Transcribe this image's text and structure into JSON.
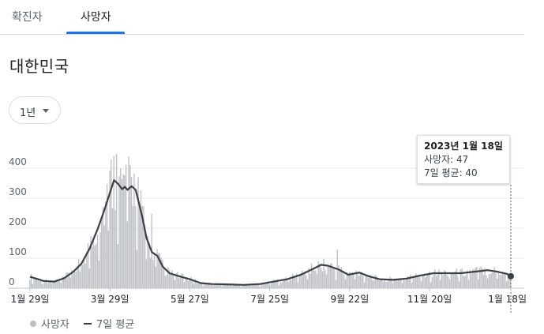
{
  "tabs": [
    {
      "label": "확진자"
    },
    {
      "label": "사망자"
    }
  ],
  "region": "대한민국",
  "range_button": {
    "label": "1년"
  },
  "tooltip": {
    "date": "2023년 1월 18일",
    "deaths": "사망자: 47",
    "avg": "7일 평균: 40"
  },
  "legend": {
    "deaths": "사망자",
    "avg": "7일 평균"
  },
  "colors": {
    "bar": "#bdc1c6",
    "line": "#3c4043",
    "accent": "#1a73e8",
    "grid": "#e8eaed"
  },
  "chart_data": {
    "type": "bar",
    "ylim": [
      0,
      450
    ],
    "y_ticks": [
      "0",
      "100",
      "200",
      "300",
      "400"
    ],
    "x_ticks": [
      "1월 29일",
      "3월 29일",
      "5월 27일",
      "7월 25일",
      "9월 22일",
      "11월 20일",
      "1월 18일"
    ],
    "series": [
      {
        "name": "사망자",
        "type": "bar"
      },
      {
        "name": "7일 평균",
        "type": "line"
      }
    ],
    "avg_points": [
      {
        "day": 0,
        "value": 38
      },
      {
        "day": 6,
        "value": 30
      },
      {
        "day": 10,
        "value": 24
      },
      {
        "day": 18,
        "value": 22
      },
      {
        "day": 25,
        "value": 33
      },
      {
        "day": 32,
        "value": 55
      },
      {
        "day": 38,
        "value": 82
      },
      {
        "day": 44,
        "value": 132
      },
      {
        "day": 50,
        "value": 198
      },
      {
        "day": 55,
        "value": 262
      },
      {
        "day": 59,
        "value": 318
      },
      {
        "day": 62,
        "value": 360
      },
      {
        "day": 65,
        "value": 348
      },
      {
        "day": 68,
        "value": 330
      },
      {
        "day": 70,
        "value": 338
      },
      {
        "day": 72,
        "value": 328
      },
      {
        "day": 75,
        "value": 340
      },
      {
        "day": 78,
        "value": 328
      },
      {
        "day": 80,
        "value": 292
      },
      {
        "day": 83,
        "value": 235
      },
      {
        "day": 86,
        "value": 168
      },
      {
        "day": 90,
        "value": 120
      },
      {
        "day": 94,
        "value": 108
      },
      {
        "day": 98,
        "value": 72
      },
      {
        "day": 103,
        "value": 50
      },
      {
        "day": 110,
        "value": 40
      },
      {
        "day": 118,
        "value": 30
      },
      {
        "day": 126,
        "value": 17
      },
      {
        "day": 134,
        "value": 14
      },
      {
        "day": 145,
        "value": 13
      },
      {
        "day": 158,
        "value": 11
      },
      {
        "day": 170,
        "value": 14
      },
      {
        "day": 180,
        "value": 22
      },
      {
        "day": 190,
        "value": 30
      },
      {
        "day": 200,
        "value": 45
      },
      {
        "day": 208,
        "value": 62
      },
      {
        "day": 215,
        "value": 78
      },
      {
        "day": 220,
        "value": 75
      },
      {
        "day": 228,
        "value": 62
      },
      {
        "day": 235,
        "value": 45
      },
      {
        "day": 243,
        "value": 52
      },
      {
        "day": 250,
        "value": 40
      },
      {
        "day": 258,
        "value": 30
      },
      {
        "day": 268,
        "value": 28
      },
      {
        "day": 278,
        "value": 32
      },
      {
        "day": 288,
        "value": 42
      },
      {
        "day": 298,
        "value": 50
      },
      {
        "day": 308,
        "value": 50
      },
      {
        "day": 318,
        "value": 50
      },
      {
        "day": 328,
        "value": 55
      },
      {
        "day": 338,
        "value": 60
      },
      {
        "day": 345,
        "value": 55
      },
      {
        "day": 352,
        "value": 48
      },
      {
        "day": 355,
        "value": 40
      }
    ],
    "highlight": {
      "date": "2023년 1월 18일",
      "deaths": 47,
      "avg": 40
    }
  }
}
